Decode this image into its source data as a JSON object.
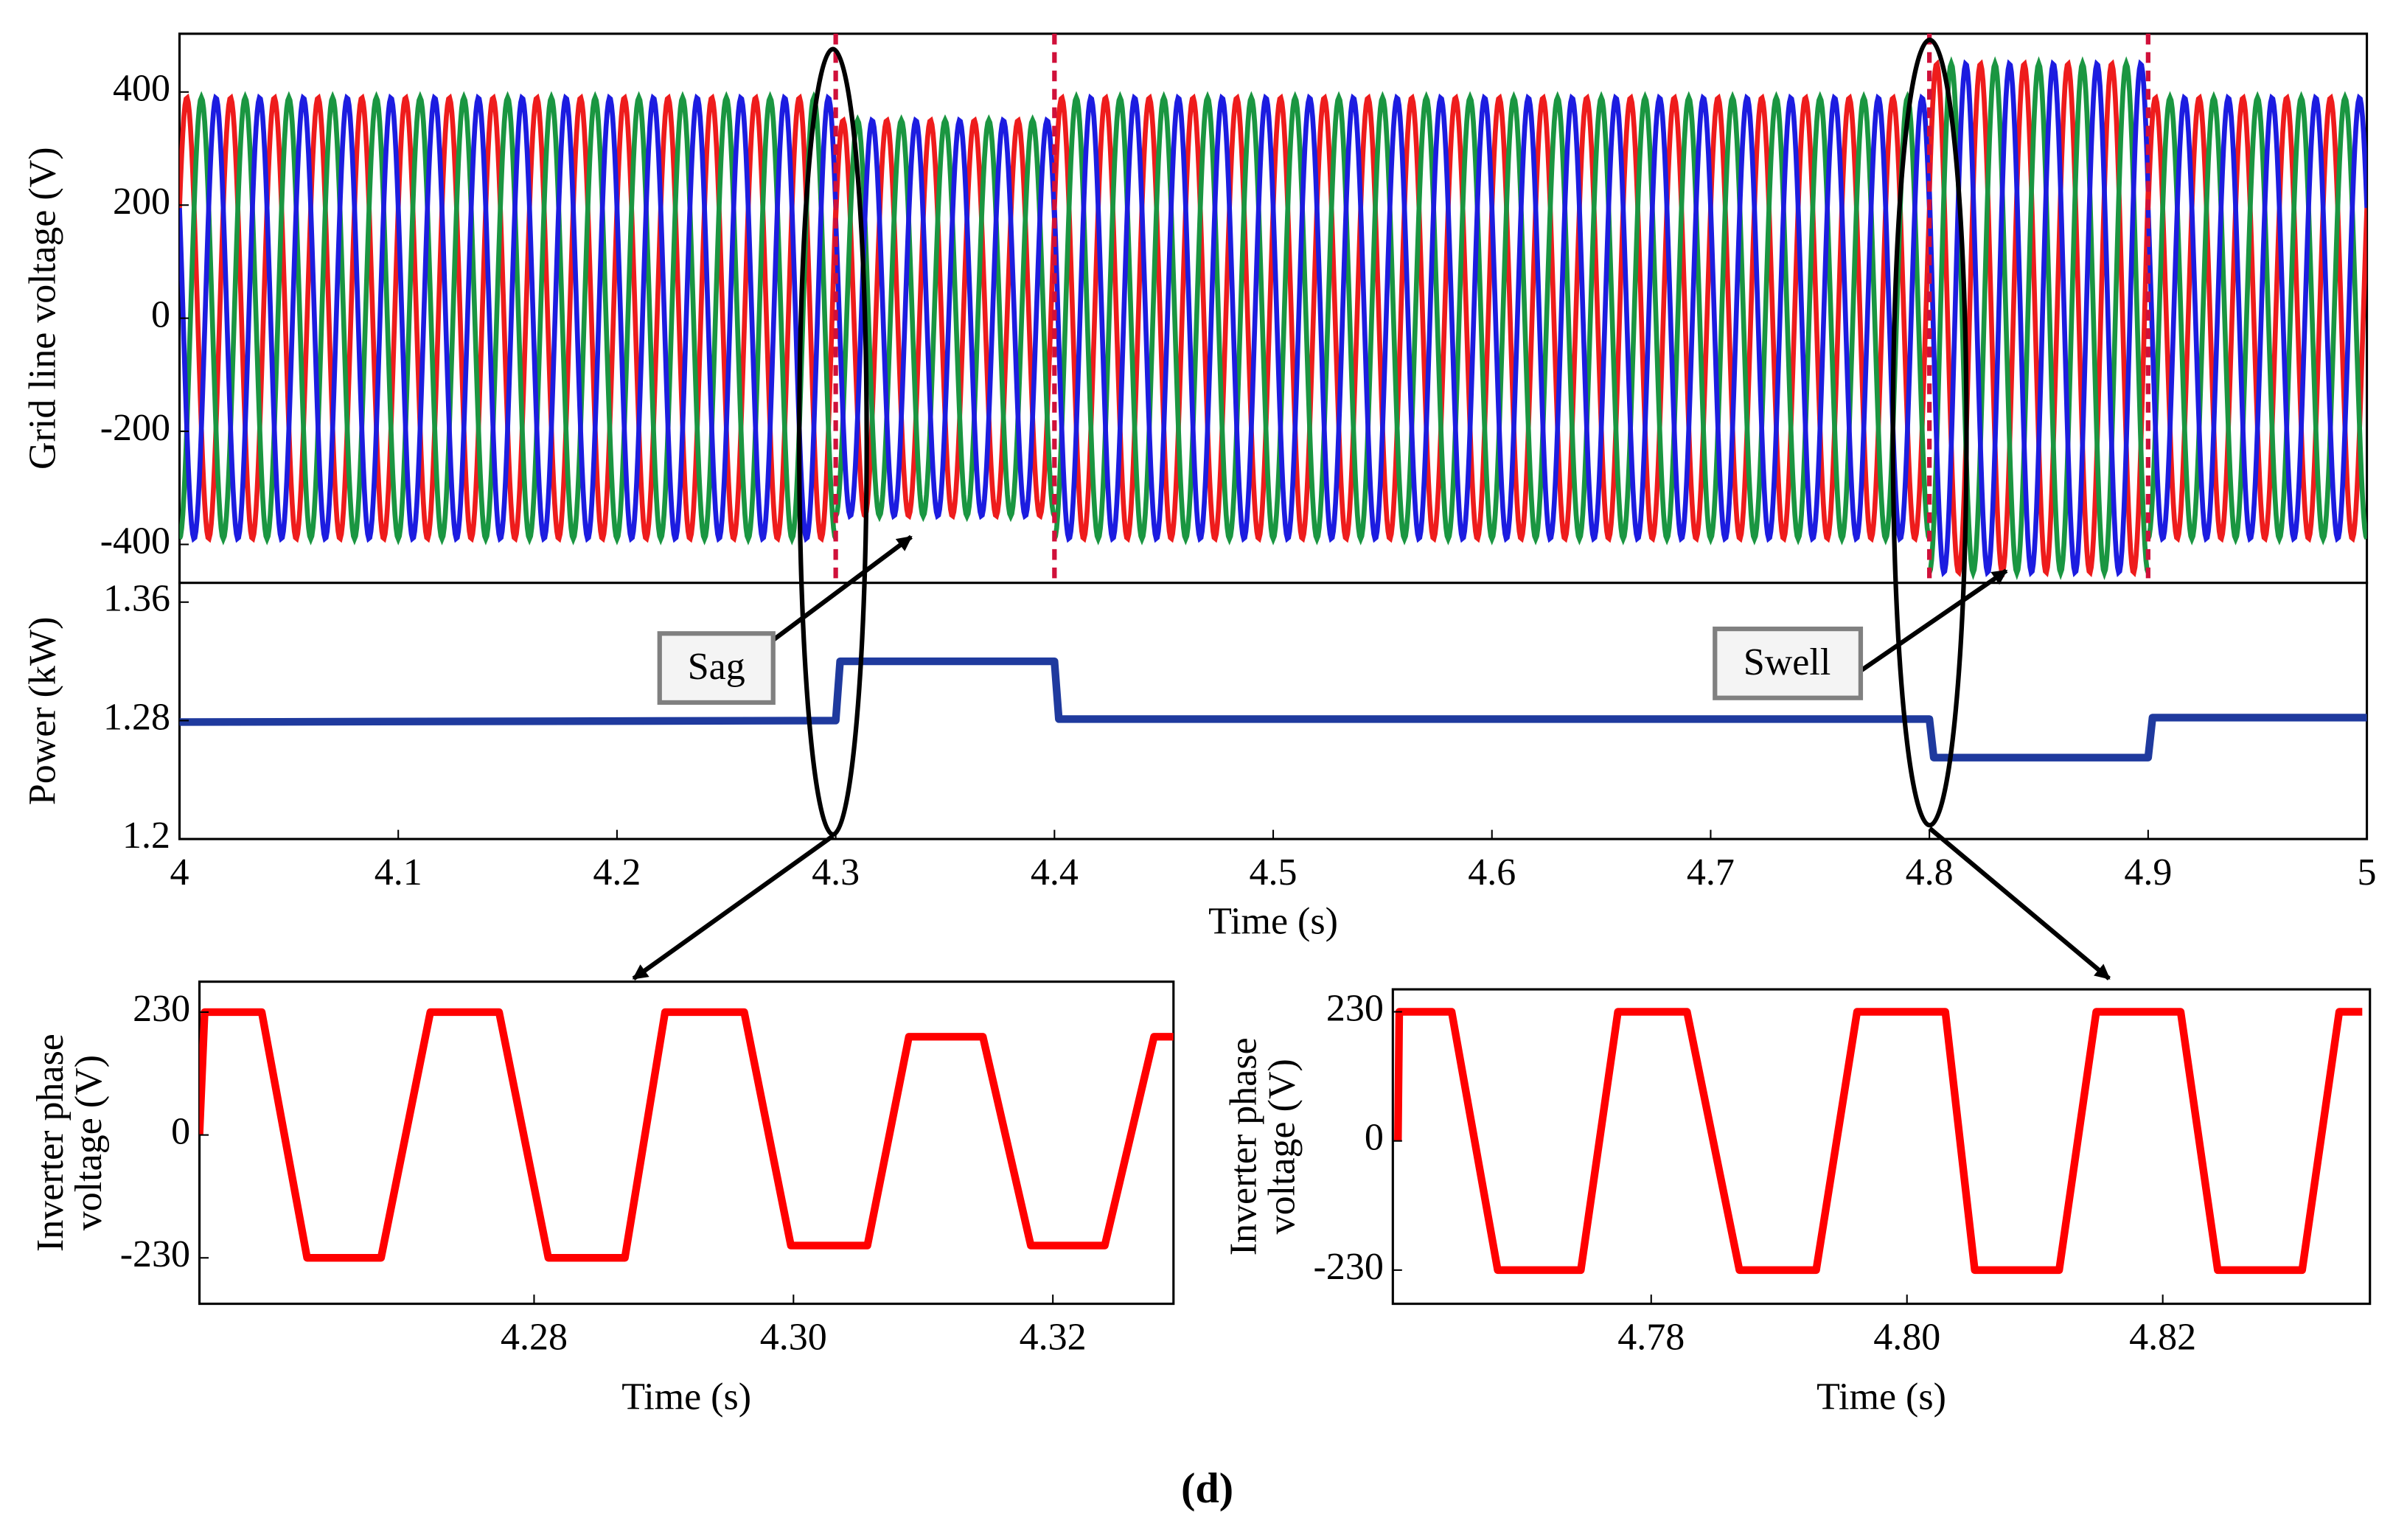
{
  "figure_label": "(d)",
  "chart_data": [
    {
      "type": "sine",
      "ylabel": "Grid line voltage (V)",
      "xlim": [
        4,
        5
      ],
      "ylim": [
        -468,
        503
      ],
      "yticks": [
        -400,
        -200,
        0,
        200,
        400
      ],
      "frequency": 50,
      "events": {
        "x": [
          4.3,
          4.4,
          4.8,
          4.9
        ],
        "color": "#d0103a"
      },
      "series": [
        {
          "color": "#ee1c1c",
          "phase_deg": 30,
          "x": [
            4,
            4.3,
            4.4,
            4.8,
            4.9
          ],
          "values": [
            390,
            350,
            390,
            450,
            390
          ]
        },
        {
          "color": "#1a9641",
          "phase_deg": -90,
          "x": [
            4,
            4.3,
            4.4,
            4.8,
            4.9
          ],
          "values": [
            390,
            350,
            390,
            450,
            390
          ]
        },
        {
          "color": "#1c1ce0",
          "phase_deg": 150,
          "x": [
            4,
            4.3,
            4.4,
            4.8,
            4.9
          ],
          "values": [
            390,
            350,
            390,
            450,
            390
          ]
        }
      ]
    },
    {
      "type": "line",
      "ylabel": "Power (kW)",
      "xlabel": "Time (s)",
      "xlim": [
        4,
        5
      ],
      "ylim": [
        1.2,
        1.373
      ],
      "yticks": [
        1.2,
        1.28,
        1.36
      ],
      "xticks": [
        4,
        4.1,
        4.2,
        4.3,
        4.4,
        4.5,
        4.6,
        4.7,
        4.8,
        4.9,
        5
      ],
      "annotations": [
        "Sag",
        "Swell"
      ],
      "series": [
        {
          "color": "#1f3a9e",
          "x": [
            4,
            4.3,
            4.302,
            4.4,
            4.402,
            4.8,
            4.802,
            4.9,
            4.902,
            5
          ],
          "values": [
            1.279,
            1.28,
            1.32,
            1.32,
            1.281,
            1.281,
            1.255,
            1.255,
            1.282,
            1.282
          ]
        }
      ]
    },
    {
      "type": "line",
      "ylabel": [
        "Inverter phase",
        "voltage (V)"
      ],
      "xlabel": "Time (s)",
      "xlim": [
        4.2542,
        4.3293
      ],
      "ylim": [
        -316,
        287
      ],
      "yticks": [
        230,
        0,
        -230
      ],
      "xticks": [
        4.28,
        {
          "value": 4.3,
          "label": "4.30"
        },
        4.32
      ],
      "series": [
        {
          "color": "#ff0000",
          "x": [
            4.2542,
            4.2546,
            4.259,
            4.2625,
            4.2682,
            4.272,
            4.2773,
            4.2811,
            4.287,
            4.2901,
            4.2962,
            4.2998,
            4.3057,
            4.3089,
            4.3146,
            4.3183,
            4.324,
            4.3278,
            4.3293
          ],
          "values": [
            0,
            230,
            230,
            -230,
            -230,
            230,
            230,
            -230,
            -230,
            230,
            230,
            -207,
            -207,
            184,
            184,
            -207,
            -207,
            184,
            184
          ]
        }
      ]
    },
    {
      "type": "line",
      "ylabel": [
        "Inverter phase",
        "voltage (V)"
      ],
      "xlabel": "Time (s)",
      "xlim": [
        4.7598,
        4.8362
      ],
      "ylim": [
        -290,
        270
      ],
      "yticks": [
        230,
        0,
        -230
      ],
      "xticks": [
        4.78,
        {
          "value": 4.8,
          "label": "4.80"
        },
        4.82
      ],
      "series": [
        {
          "color": "#ff0000",
          "x": [
            4.7602,
            4.7603,
            4.7644,
            4.768,
            4.7745,
            4.7774,
            4.7828,
            4.7869,
            4.7929,
            4.7961,
            4.803,
            4.8053,
            4.8119,
            4.8148,
            4.8214,
            4.8243,
            4.8309,
            4.8338,
            4.8356
          ],
          "values": [
            0,
            230,
            230,
            -230,
            -230,
            230,
            230,
            -230,
            -230,
            230,
            230,
            -230,
            -230,
            230,
            230,
            -230,
            -230,
            230,
            230
          ]
        }
      ]
    }
  ]
}
